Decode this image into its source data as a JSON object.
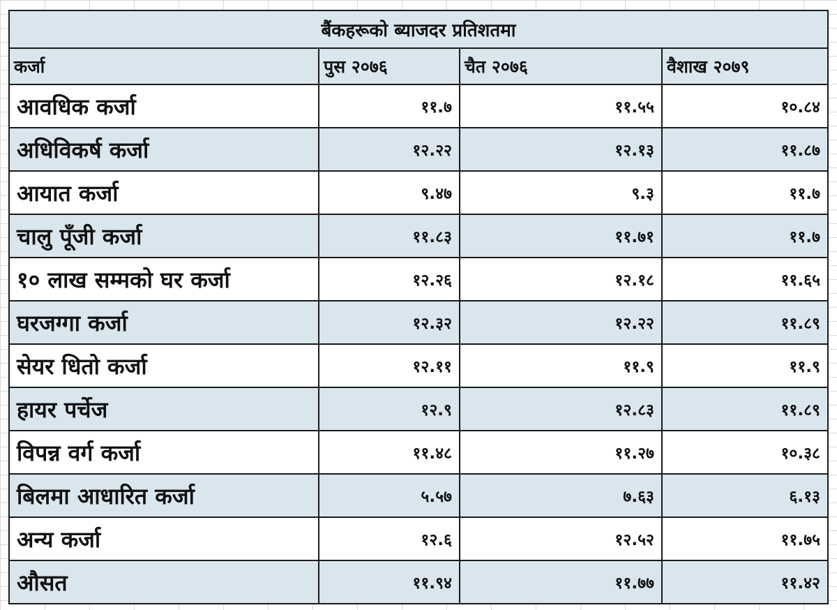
{
  "table": {
    "title": "बैंकहरूको ब्याजदर प्रतिशतमा",
    "headers": [
      "कर्जा",
      "पुस २०७६",
      "चैत २०७६",
      "वैशाख २०७९"
    ],
    "rows": [
      {
        "label": "आवधिक कर्जा",
        "values": [
          "११.७",
          "११.५५",
          "१०.८४"
        ]
      },
      {
        "label": "अधिविकर्ष कर्जा",
        "values": [
          "१२.२२",
          "१२.१३",
          "११.८७"
        ]
      },
      {
        "label": "आयात कर्जा",
        "values": [
          "९.४७",
          "९.३",
          "११.७"
        ]
      },
      {
        "label": "चालु पूँजी कर्जा",
        "values": [
          "११.८३",
          "११.७१",
          "११.७"
        ]
      },
      {
        "label": "१० लाख सम्मको घर कर्जा",
        "values": [
          "१२.२६",
          "१२.१८",
          "११.६५"
        ]
      },
      {
        "label": "घरजग्गा कर्जा",
        "values": [
          "१२.३२",
          "१२.२२",
          "११.८९"
        ]
      },
      {
        "label": "सेयर धितो कर्जा",
        "values": [
          "१२.११",
          "११.९",
          "११.९"
        ]
      },
      {
        "label": "हायर पर्चेज",
        "values": [
          "१२.९",
          "१२.८३",
          "११.८९"
        ]
      },
      {
        "label": "विपन्न वर्ग कर्जा",
        "values": [
          "११.४८",
          "११.२७",
          "१०.३८"
        ]
      },
      {
        "label": "बिलमा आधारित कर्जा",
        "values": [
          "५.५७",
          "७.६३",
          "६.१३"
        ]
      },
      {
        "label": "अन्य कर्जा",
        "values": [
          "१२.६",
          "१२.५२",
          "११.७५"
        ]
      },
      {
        "label": "औसत",
        "values": [
          "११.९४",
          "११.७७",
          "११.४२"
        ]
      }
    ]
  }
}
